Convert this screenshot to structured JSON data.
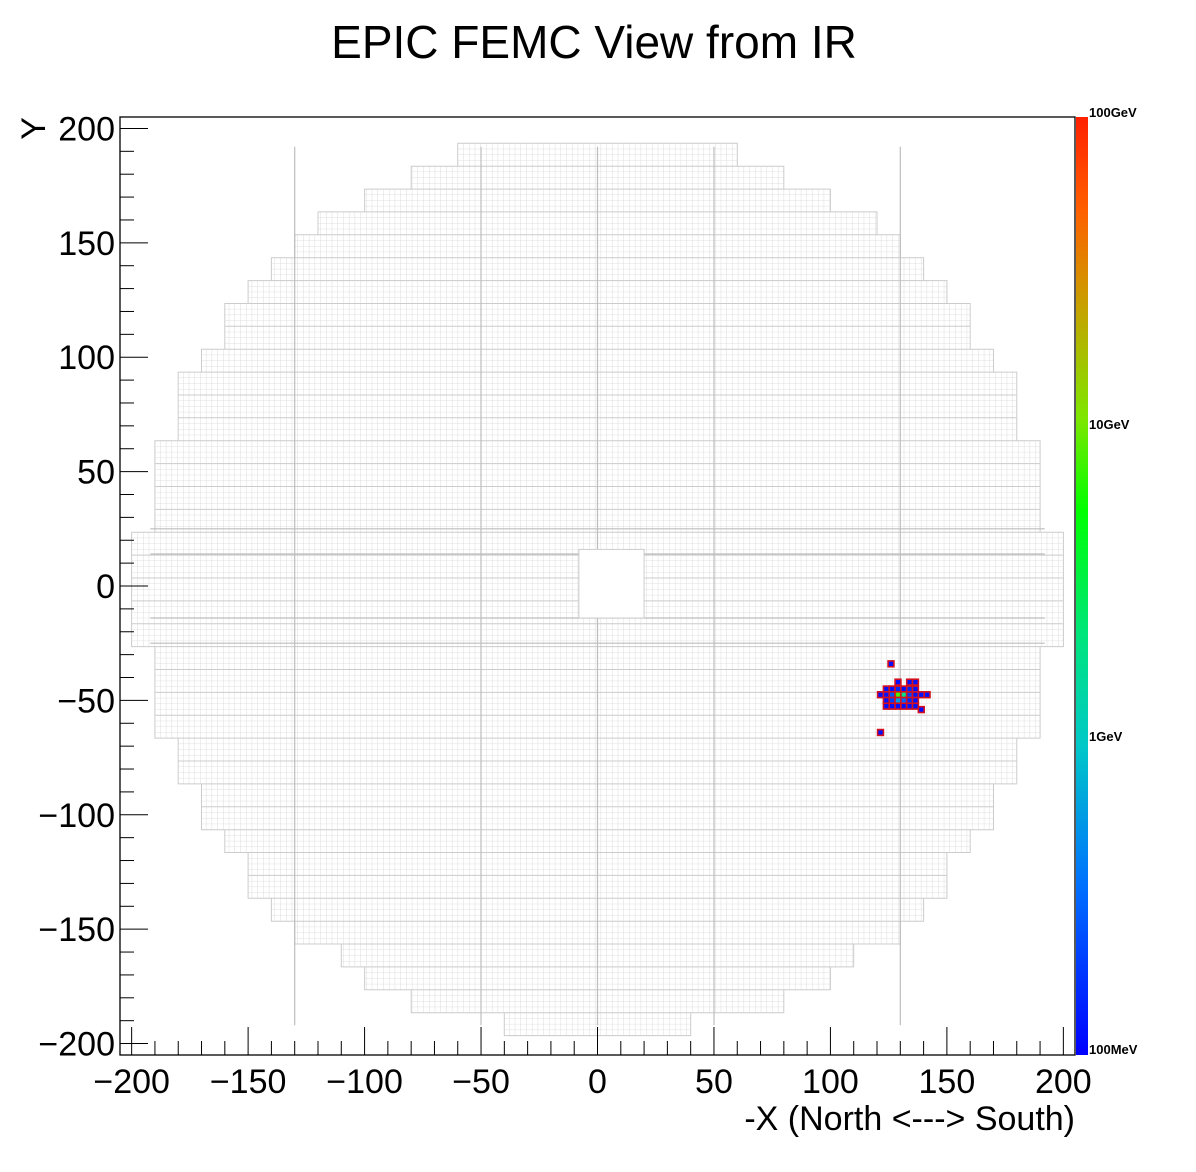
{
  "chart_data": {
    "type": "heatmap",
    "title": "EPIC FEMC View from IR",
    "xlabel": "-X (North <---> South)",
    "ylabel": "Y",
    "xlim": [
      -205,
      205
    ],
    "ylim": [
      -205,
      205
    ],
    "x_ticks": [
      -200,
      -150,
      -100,
      -50,
      0,
      50,
      100,
      150,
      200
    ],
    "y_ticks": [
      -200,
      -150,
      -100,
      -50,
      0,
      50,
      100,
      150,
      200
    ],
    "x_tick_labels": [
      "−200",
      "−150",
      "−100",
      "−50",
      "0",
      "50",
      "100",
      "150",
      "200"
    ],
    "y_tick_labels": [
      "−200",
      "−150",
      "−100",
      "−50",
      "0",
      "50",
      "100",
      "150",
      "200"
    ],
    "color_scale": "log",
    "colorbar_labels": [
      "100GeV",
      "10GeV",
      "1GeV",
      "100MeV"
    ],
    "colorbar_range_gev": [
      0.1,
      100
    ],
    "cell_size": 2.5,
    "detector_outline_color": "#cccccc",
    "hits": [
      {
        "x": 126,
        "y": -34,
        "e": 0.12
      },
      {
        "x": 124,
        "y": -45,
        "e": 0.12
      },
      {
        "x": 126.5,
        "y": -45,
        "e": 0.12
      },
      {
        "x": 129,
        "y": -45,
        "e": 0.15
      },
      {
        "x": 131.5,
        "y": -45,
        "e": 0.12
      },
      {
        "x": 129,
        "y": -42,
        "e": 0.12
      },
      {
        "x": 134,
        "y": -42,
        "e": 0.12
      },
      {
        "x": 136.5,
        "y": -42,
        "e": 0.12
      },
      {
        "x": 121.5,
        "y": -47.5,
        "e": 0.12
      },
      {
        "x": 124,
        "y": -47.5,
        "e": 0.12
      },
      {
        "x": 126.5,
        "y": -47.5,
        "e": 0.25
      },
      {
        "x": 129,
        "y": -47.5,
        "e": 8
      },
      {
        "x": 131.5,
        "y": -47.5,
        "e": 2
      },
      {
        "x": 134,
        "y": -47.5,
        "e": 0.2
      },
      {
        "x": 136.5,
        "y": -47.5,
        "e": 0.12
      },
      {
        "x": 139,
        "y": -47.5,
        "e": 0.12
      },
      {
        "x": 141.5,
        "y": -47.5,
        "e": 0.12
      },
      {
        "x": 134,
        "y": -45,
        "e": 0.15
      },
      {
        "x": 136.5,
        "y": -45,
        "e": 0.12
      },
      {
        "x": 124,
        "y": -50,
        "e": 0.12
      },
      {
        "x": 126.5,
        "y": -50,
        "e": 0.2
      },
      {
        "x": 129,
        "y": -50,
        "e": 0.6
      },
      {
        "x": 131.5,
        "y": -50,
        "e": 0.3
      },
      {
        "x": 134,
        "y": -50,
        "e": 0.15
      },
      {
        "x": 136.5,
        "y": -50,
        "e": 0.12
      },
      {
        "x": 124,
        "y": -52.5,
        "e": 0.12
      },
      {
        "x": 126.5,
        "y": -52.5,
        "e": 0.12
      },
      {
        "x": 129,
        "y": -52.5,
        "e": 0.12
      },
      {
        "x": 131.5,
        "y": -52.5,
        "e": 0.12
      },
      {
        "x": 134,
        "y": -52.5,
        "e": 0.12
      },
      {
        "x": 136.5,
        "y": -52.5,
        "e": 0.12
      },
      {
        "x": 139,
        "y": -54,
        "e": 0.12
      },
      {
        "x": 121.5,
        "y": -64,
        "e": 0.12
      }
    ]
  }
}
